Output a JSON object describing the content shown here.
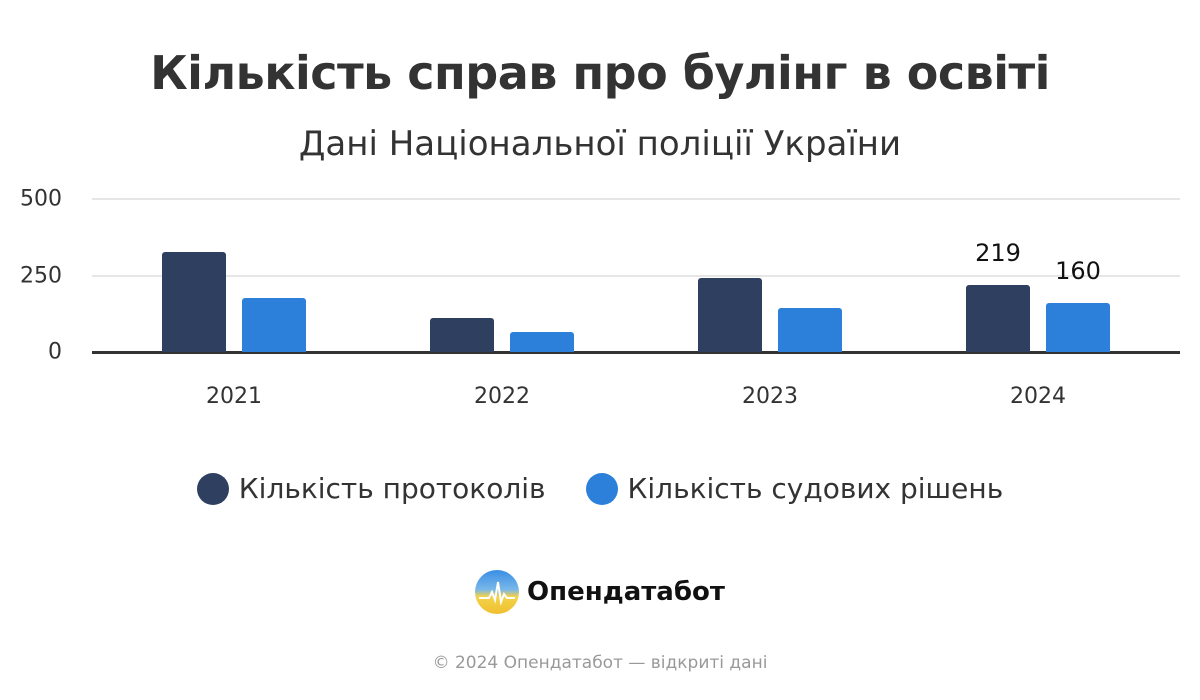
{
  "header": {
    "title": "Кількість справ про булінг в освіті",
    "subtitle": "Дані Національної поліції України"
  },
  "colors": {
    "protocols": "#2e3f5f",
    "decisions": "#2c80d9",
    "grid": "#e6e6e6",
    "axis": "#333333"
  },
  "legend": [
    {
      "label": "Кількість протоколів",
      "color": "#2e3f5f"
    },
    {
      "label": "Кількість судових рішень",
      "color": "#2c80d9"
    }
  ],
  "brand": {
    "name": "Опендатабот",
    "logo_icon": "opendatabot-logo-icon"
  },
  "footer": {
    "text": "© 2024 Опендатабот — відкриті дані"
  },
  "chart_data": {
    "type": "bar",
    "title": "Кількість справ про булінг в освіті",
    "subtitle": "Дані Національної поліції України",
    "categories": [
      "2021",
      "2022",
      "2023",
      "2024"
    ],
    "series": [
      {
        "name": "Кількість протоколів",
        "values": [
          327,
          111,
          242,
          219
        ],
        "color": "#2e3f5f"
      },
      {
        "name": "Кількість судових рішень",
        "values": [
          176,
          65,
          144,
          160
        ],
        "color": "#2c80d9"
      }
    ],
    "data_labels": [
      {
        "category": "2024",
        "series": "Кількість протоколів",
        "text": "219"
      },
      {
        "category": "2024",
        "series": "Кількість судових рішень",
        "text": "160"
      }
    ],
    "yticks": [
      "0",
      "250",
      "500"
    ],
    "ylim": [
      0,
      500
    ],
    "xlabel": "",
    "ylabel": "",
    "grid": true,
    "legend_position": "bottom"
  }
}
